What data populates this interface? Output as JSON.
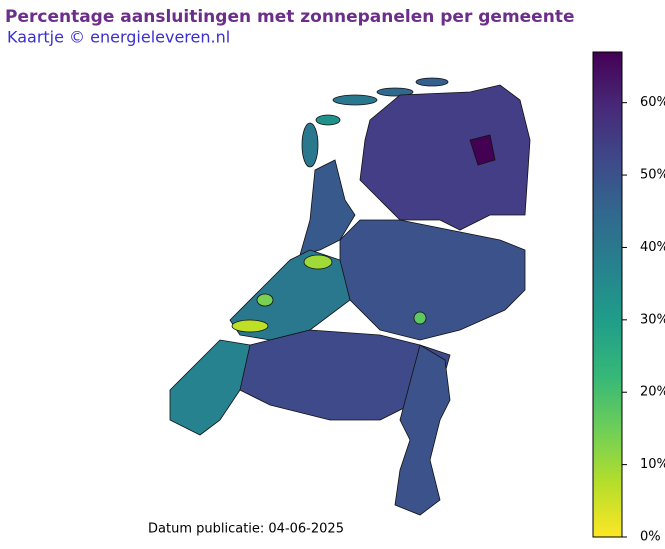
{
  "header": {
    "title": "Percentage aansluitingen met zonnepanelen per gemeente",
    "subtitle": "Kaartje © energieleveren.nl"
  },
  "footer": "Datum publicatie: 04-06-2025",
  "colorbar": {
    "colormap": "viridis_r",
    "lim": [
      0,
      67
    ],
    "ticks": [
      {
        "value": 0,
        "label": "0%"
      },
      {
        "value": 10,
        "label": "10%"
      },
      {
        "value": 20,
        "label": "20%"
      },
      {
        "value": 30,
        "label": "30%"
      },
      {
        "value": 40,
        "label": "40%"
      },
      {
        "value": 50,
        "label": "50%"
      },
      {
        "value": 60,
        "label": "60%"
      }
    ]
  }
}
